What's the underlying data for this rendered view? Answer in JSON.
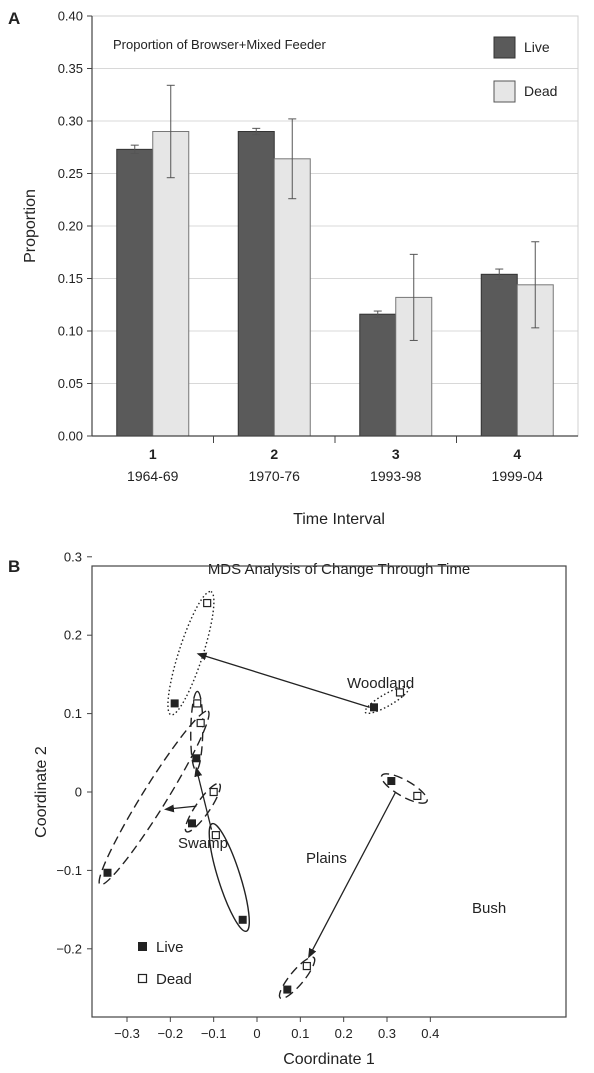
{
  "colors": {
    "live_bar": "#5a5a5a",
    "dead_bar": "#e6e6e6",
    "axis": "#444444",
    "grid": "#d8d8d8",
    "ink": "#222222"
  },
  "chart_data": [
    {
      "panel": "A",
      "type": "bar",
      "title": "Proportion of Browser+Mixed Feeder",
      "xlabel": "Time Interval",
      "ylabel": "Proportion",
      "ylim": [
        0,
        0.4
      ],
      "yticks": [
        "0.00",
        "0.05",
        "0.10",
        "0.15",
        "0.20",
        "0.25",
        "0.30",
        "0.35",
        "0.40"
      ],
      "grid": true,
      "legend_position": "top-right",
      "categories": [
        {
          "num": "1",
          "years": "1964-69"
        },
        {
          "num": "2",
          "years": "1970-76"
        },
        {
          "num": "3",
          "years": "1993-98"
        },
        {
          "num": "4",
          "years": "1999-04"
        }
      ],
      "series": [
        {
          "name": "Live",
          "color": "#5a5a5a",
          "values": [
            0.273,
            0.29,
            0.116,
            0.154
          ],
          "err": [
            0.004,
            0.003,
            0.003,
            0.005
          ]
        },
        {
          "name": "Dead",
          "color": "#e6e6e6",
          "values": [
            0.29,
            0.264,
            0.132,
            0.144
          ],
          "err": [
            0.044,
            0.038,
            0.041,
            0.041
          ]
        }
      ]
    },
    {
      "panel": "B",
      "type": "scatter",
      "title": "MDS Analysis of Change Through Time",
      "xlabel": "Coordinate 1",
      "ylabel": "Coordinate 2",
      "xlim": [
        -0.4,
        0.4
      ],
      "ylim": [
        -0.3,
        0.3
      ],
      "xticks": [
        "−0.3",
        "−0.2",
        "−0.1",
        "0",
        "0.1",
        "0.2",
        "0.3",
        "0.4"
      ],
      "yticks": [
        "−0.2",
        "−0.1",
        "0",
        "0.1",
        "0.2",
        "0.3"
      ],
      "legend_position": "bottom-left",
      "legend": [
        {
          "name": "Live",
          "marker": "filled-square"
        },
        {
          "name": "Dead",
          "marker": "open-square"
        }
      ],
      "groups": [
        {
          "name": "Woodland",
          "line": "dotted",
          "live": [
            {
              "x": -0.19,
              "y": 0.113
            },
            {
              "x": 0.27,
              "y": 0.108
            }
          ],
          "dead": [
            {
              "x": -0.115,
              "y": 0.241
            },
            {
              "x": 0.33,
              "y": 0.127
            }
          ],
          "arrow": {
            "from": [
              0.26,
              0.108
            ],
            "to": [
              -0.135,
              0.176
            ]
          }
        },
        {
          "name": "Swamp",
          "line": "dashed",
          "live": [
            {
              "x": -0.345,
              "y": -0.103
            },
            {
              "x": -0.15,
              "y": -0.04
            },
            {
              "x": -0.14,
              "y": 0.043
            }
          ],
          "dead": [
            {
              "x": -0.13,
              "y": 0.088
            },
            {
              "x": -0.138,
              "y": 0.113
            },
            {
              "x": -0.1,
              "y": 0.0
            }
          ],
          "arrow": {
            "from": [
              -0.14,
              -0.018
            ],
            "to": [
              -0.21,
              -0.022
            ]
          }
        },
        {
          "name": "Plains",
          "line": "solid",
          "live": [
            {
              "x": -0.033,
              "y": -0.163
            }
          ],
          "dead": [
            {
              "x": -0.095,
              "y": -0.055
            }
          ],
          "arrow": {
            "from": [
              -0.105,
              -0.048
            ],
            "to": [
              -0.14,
              0.03
            ]
          }
        },
        {
          "name": "Bush",
          "line": "dashed",
          "live": [
            {
              "x": 0.31,
              "y": 0.014
            },
            {
              "x": 0.07,
              "y": -0.252
            }
          ],
          "dead": [
            {
              "x": 0.37,
              "y": -0.005
            },
            {
              "x": 0.115,
              "y": -0.222
            }
          ],
          "arrow": {
            "from": [
              0.32,
              0.0
            ],
            "to": [
              0.12,
              -0.21
            ]
          }
        }
      ]
    }
  ]
}
